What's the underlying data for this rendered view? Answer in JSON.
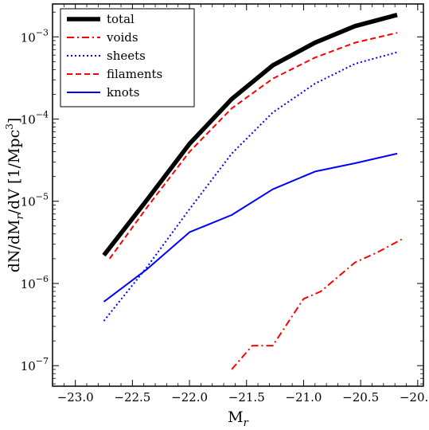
{
  "chart_data": {
    "type": "line",
    "xlabel": "M",
    "xlabel_sub": "r",
    "ylabel": "dN/dM",
    "ylabel_sub": "r",
    "ylabel_rest": "/dV [1/Mpc",
    "ylabel_sup": "3",
    "ylabel_end": "]",
    "xlim": [
      -23.2,
      -19.95
    ],
    "ylim_log10": [
      -7.25,
      -2.6
    ],
    "y_scale": "log",
    "x_ticks": [
      -23.0,
      -22.5,
      -22.0,
      -21.5,
      -21.0,
      -20.5,
      -20.0
    ],
    "x_tick_labels": [
      "−23.0",
      "−22.5",
      "−22.0",
      "−21.5",
      "−21.0",
      "−20.5",
      "−20.0"
    ],
    "y_tick_labels": [
      {
        "base": "10",
        "exp": "−7",
        "log": -7
      },
      {
        "base": "10",
        "exp": "−6",
        "log": -6
      },
      {
        "base": "10",
        "exp": "−5",
        "log": -5
      },
      {
        "base": "10",
        "exp": "−4",
        "log": -4
      },
      {
        "base": "10",
        "exp": "−3",
        "log": -3
      }
    ],
    "legend_position": "top-left",
    "series": [
      {
        "name": "total",
        "color": "#000000",
        "style": "solid-thick",
        "x": [
          -22.75,
          -22.37,
          -22.0,
          -21.63,
          -21.27,
          -20.9,
          -20.55,
          -20.18
        ],
        "y": [
          2.2e-06,
          1.05e-05,
          5e-05,
          0.000175,
          0.00045,
          0.00085,
          0.00135,
          0.00185
        ]
      },
      {
        "name": "voids",
        "color": "#ff0000",
        "style": "dashdot",
        "x": [
          -21.63,
          -21.45,
          -21.27,
          -21.0,
          -20.85,
          -20.55,
          -20.35,
          -20.13
        ],
        "y": [
          9e-08,
          1.75e-07,
          1.75e-07,
          6.5e-07,
          8e-07,
          1.8e-06,
          2.4e-06,
          3.5e-06
        ]
      },
      {
        "name": "sheets",
        "color": "#0000ff",
        "style": "dotted",
        "x": [
          -22.75,
          -22.37,
          -22.0,
          -21.63,
          -21.27,
          -20.9,
          -20.55,
          -20.18
        ],
        "y": [
          3.5e-07,
          1.6e-06,
          8e-06,
          3.8e-05,
          0.00012,
          0.00027,
          0.00047,
          0.00065
        ]
      },
      {
        "name": "filaments",
        "color": "#ff0000",
        "style": "dashed",
        "x": [
          -22.7,
          -22.37,
          -22.0,
          -21.63,
          -21.27,
          -20.9,
          -20.55,
          -20.18
        ],
        "y": [
          2e-06,
          8.5e-06,
          4e-05,
          0.000135,
          0.00031,
          0.00056,
          0.00085,
          0.00112
        ]
      },
      {
        "name": "knots",
        "color": "#0000ff",
        "style": "solid",
        "x": [
          -22.75,
          -22.37,
          -22.0,
          -21.63,
          -21.27,
          -20.9,
          -20.55,
          -20.18
        ],
        "y": [
          6e-07,
          1.5e-06,
          4.2e-06,
          6.8e-06,
          1.4e-05,
          2.3e-05,
          2.9e-05,
          3.8e-05
        ]
      }
    ]
  }
}
